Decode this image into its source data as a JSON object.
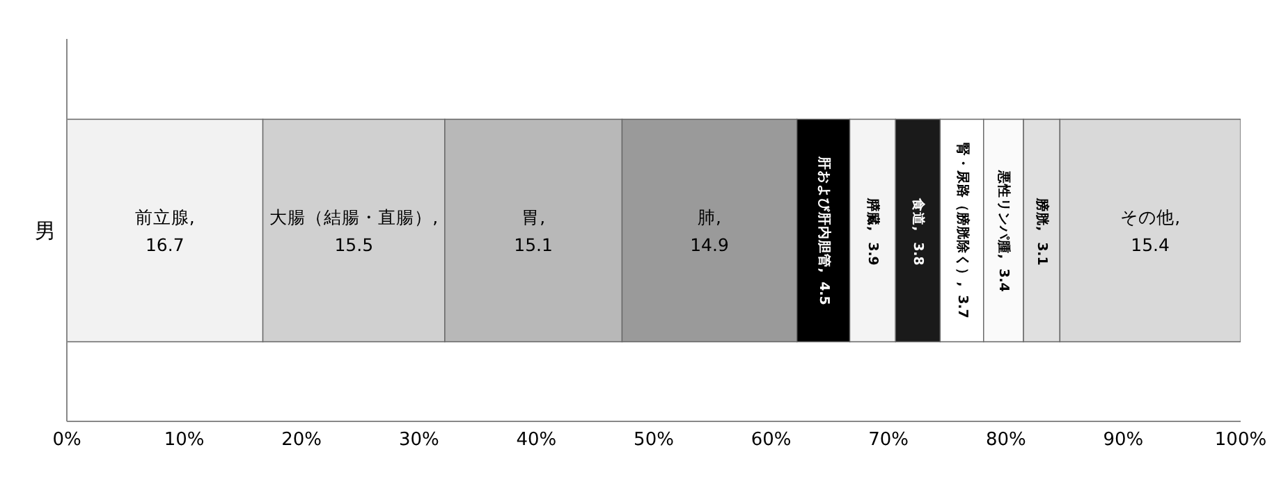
{
  "chart_data": {
    "type": "bar",
    "orientation": "horizontal",
    "stacked": true,
    "data_labels": true,
    "categories": [
      "男"
    ],
    "xlim": [
      0,
      100
    ],
    "xticks": [
      {
        "value": 0,
        "label": "0%"
      },
      {
        "value": 10,
        "label": "10%"
      },
      {
        "value": 20,
        "label": "20%"
      },
      {
        "value": 30,
        "label": "30%"
      },
      {
        "value": 40,
        "label": "40%"
      },
      {
        "value": 50,
        "label": "50%"
      },
      {
        "value": 60,
        "label": "60%"
      },
      {
        "value": 70,
        "label": "70%"
      },
      {
        "value": 80,
        "label": "80%"
      },
      {
        "value": 90,
        "label": "90%"
      },
      {
        "value": 100,
        "label": "100%"
      }
    ],
    "series": [
      {
        "name": "前立腺,",
        "color": "#f2f2f2",
        "values": [
          16.7
        ]
      },
      {
        "name": "大腸（結腸・直腸）,",
        "color": "#d0d0d0",
        "values": [
          15.5
        ]
      },
      {
        "name": "胃,",
        "color": "#b8b8b8",
        "values": [
          15.1
        ]
      },
      {
        "name": "肺,",
        "color": "#9a9a9a",
        "values": [
          14.9
        ]
      },
      {
        "name": "肝および肝内胆管,",
        "color": "#000000",
        "values": [
          4.5
        ]
      },
      {
        "name": "膵臓,",
        "color": "#f4f4f4",
        "values": [
          3.9
        ]
      },
      {
        "name": "食道,",
        "color": "#1a1a1a",
        "values": [
          3.8
        ]
      },
      {
        "name": "腎・尿路（膀胱除く）,",
        "color": "#ffffff",
        "values": [
          3.7
        ]
      },
      {
        "name": "悪性リンパ腫,",
        "color": "#fafafa",
        "values": [
          3.4
        ]
      },
      {
        "name": "膀胱,",
        "color": "#e0e0e0",
        "values": [
          3.1
        ]
      },
      {
        "name": "その他,",
        "color": "#d9d9d9",
        "values": [
          15.4
        ]
      }
    ]
  }
}
